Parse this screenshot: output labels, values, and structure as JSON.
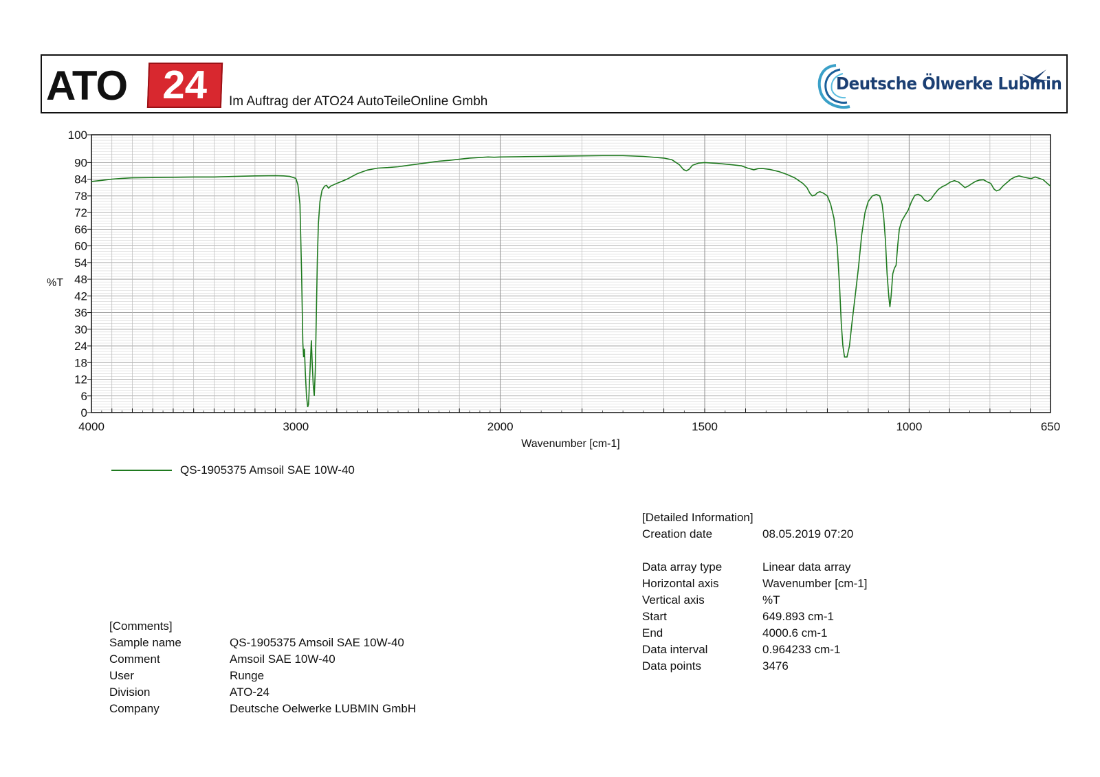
{
  "header": {
    "ato_logo_text": "ATO",
    "ato_logo_number": "24",
    "caption": "Im Auftrag der ATO24 AutoTeileOnline Gmbh",
    "dolw_logo_text": "Deutsche Ölwerke Lubmin"
  },
  "chart_data": {
    "type": "line",
    "title": "",
    "xlabel": "Wavenumber [cm-1]",
    "ylabel": "%T",
    "xlim": [
      4000,
      650
    ],
    "ylim": [
      0,
      100
    ],
    "x_ticks": [
      {
        "value": 4000,
        "label": "4000"
      },
      {
        "value": 3000,
        "label": "3000"
      },
      {
        "value": 2000,
        "label": "2000"
      },
      {
        "value": 1500,
        "label": "1500"
      },
      {
        "value": 1000,
        "label": "1000"
      },
      {
        "value": 650,
        "label": "650"
      }
    ],
    "y_ticks": [
      0,
      6,
      12,
      18,
      24,
      30,
      36,
      42,
      48,
      54,
      60,
      66,
      72,
      78,
      84,
      90,
      100
    ],
    "grid": true,
    "legend_position": "bottom-left",
    "series": [
      {
        "name": "QS-1905375 Amsoil SAE 10W-40",
        "color": "#1f7a1f",
        "points": [
          [
            4000,
            83.2
          ],
          [
            3950,
            83.6
          ],
          [
            3900,
            84.0
          ],
          [
            3850,
            84.3
          ],
          [
            3800,
            84.5
          ],
          [
            3700,
            84.6
          ],
          [
            3600,
            84.7
          ],
          [
            3500,
            84.8
          ],
          [
            3400,
            84.8
          ],
          [
            3300,
            85.0
          ],
          [
            3200,
            85.2
          ],
          [
            3100,
            85.3
          ],
          [
            3060,
            85.2
          ],
          [
            3030,
            85.0
          ],
          [
            3000,
            84.3
          ],
          [
            2990,
            82.0
          ],
          [
            2980,
            75.0
          ],
          [
            2972,
            50.0
          ],
          [
            2966,
            25.0
          ],
          [
            2962,
            20.0
          ],
          [
            2958,
            23.0
          ],
          [
            2954,
            15.0
          ],
          [
            2948,
            6.0
          ],
          [
            2942,
            2.0
          ],
          [
            2938,
            3.0
          ],
          [
            2934,
            10.0
          ],
          [
            2928,
            20.0
          ],
          [
            2924,
            26.0
          ],
          [
            2920,
            18.0
          ],
          [
            2915,
            10.0
          ],
          [
            2910,
            6.0
          ],
          [
            2905,
            15.0
          ],
          [
            2900,
            35.0
          ],
          [
            2895,
            55.0
          ],
          [
            2890,
            68.0
          ],
          [
            2882,
            76.0
          ],
          [
            2872,
            80.0
          ],
          [
            2860,
            81.5
          ],
          [
            2850,
            81.8
          ],
          [
            2840,
            80.8
          ],
          [
            2830,
            81.5
          ],
          [
            2800,
            82.5
          ],
          [
            2750,
            84.0
          ],
          [
            2700,
            86.0
          ],
          [
            2650,
            87.3
          ],
          [
            2600,
            88.0
          ],
          [
            2550,
            88.2
          ],
          [
            2500,
            88.5
          ],
          [
            2450,
            89.0
          ],
          [
            2400,
            89.5
          ],
          [
            2350,
            90.0
          ],
          [
            2300,
            90.5
          ],
          [
            2250,
            90.8
          ],
          [
            2200,
            91.2
          ],
          [
            2150,
            91.6
          ],
          [
            2100,
            91.8
          ],
          [
            2060,
            92.0
          ],
          [
            2030,
            91.9
          ],
          [
            2000,
            92.0
          ],
          [
            1950,
            92.1
          ],
          [
            1900,
            92.2
          ],
          [
            1850,
            92.3
          ],
          [
            1800,
            92.4
          ],
          [
            1750,
            92.5
          ],
          [
            1700,
            92.5
          ],
          [
            1650,
            92.2
          ],
          [
            1600,
            91.6
          ],
          [
            1580,
            91.0
          ],
          [
            1562,
            89.2
          ],
          [
            1552,
            87.5
          ],
          [
            1545,
            87.0
          ],
          [
            1538,
            87.6
          ],
          [
            1530,
            89.0
          ],
          [
            1515,
            89.8
          ],
          [
            1500,
            90.0
          ],
          [
            1470,
            89.7
          ],
          [
            1440,
            89.3
          ],
          [
            1410,
            88.8
          ],
          [
            1395,
            88.0
          ],
          [
            1380,
            87.4
          ],
          [
            1370,
            87.8
          ],
          [
            1360,
            87.9
          ],
          [
            1340,
            87.5
          ],
          [
            1320,
            86.8
          ],
          [
            1300,
            85.8
          ],
          [
            1280,
            84.5
          ],
          [
            1260,
            82.5
          ],
          [
            1250,
            81.0
          ],
          [
            1243,
            79.0
          ],
          [
            1237,
            78.0
          ],
          [
            1230,
            78.3
          ],
          [
            1224,
            79.2
          ],
          [
            1218,
            79.5
          ],
          [
            1210,
            79.0
          ],
          [
            1200,
            78.0
          ],
          [
            1192,
            75.0
          ],
          [
            1184,
            70.0
          ],
          [
            1176,
            60.0
          ],
          [
            1170,
            45.0
          ],
          [
            1166,
            32.0
          ],
          [
            1162,
            24.0
          ],
          [
            1158,
            20.0
          ],
          [
            1152,
            20.0
          ],
          [
            1146,
            24.0
          ],
          [
            1140,
            32.0
          ],
          [
            1132,
            42.0
          ],
          [
            1124,
            52.0
          ],
          [
            1116,
            64.0
          ],
          [
            1108,
            72.0
          ],
          [
            1100,
            76.0
          ],
          [
            1090,
            78.0
          ],
          [
            1080,
            78.5
          ],
          [
            1072,
            78.0
          ],
          [
            1066,
            75.0
          ],
          [
            1062,
            70.0
          ],
          [
            1058,
            62.0
          ],
          [
            1054,
            50.0
          ],
          [
            1050,
            42.0
          ],
          [
            1047,
            38.0
          ],
          [
            1044,
            42.0
          ],
          [
            1040,
            50.0
          ],
          [
            1036,
            52.0
          ],
          [
            1032,
            53.0
          ],
          [
            1028,
            60.0
          ],
          [
            1024,
            66.0
          ],
          [
            1018,
            69.0
          ],
          [
            1010,
            71.0
          ],
          [
            1002,
            73.0
          ],
          [
            994,
            76.0
          ],
          [
            986,
            78.2
          ],
          [
            978,
            78.6
          ],
          [
            970,
            78.0
          ],
          [
            962,
            76.5
          ],
          [
            954,
            76.0
          ],
          [
            946,
            76.8
          ],
          [
            938,
            78.5
          ],
          [
            928,
            80.3
          ],
          [
            918,
            81.3
          ],
          [
            908,
            82.0
          ],
          [
            898,
            83.0
          ],
          [
            888,
            83.5
          ],
          [
            878,
            83.0
          ],
          [
            870,
            82.0
          ],
          [
            862,
            81.0
          ],
          [
            854,
            81.5
          ],
          [
            846,
            82.3
          ],
          [
            836,
            83.2
          ],
          [
            826,
            83.7
          ],
          [
            816,
            83.8
          ],
          [
            806,
            83.0
          ],
          [
            798,
            82.5
          ],
          [
            790,
            80.5
          ],
          [
            784,
            79.8
          ],
          [
            776,
            80.2
          ],
          [
            768,
            81.5
          ],
          [
            758,
            82.8
          ],
          [
            748,
            84.0
          ],
          [
            738,
            84.8
          ],
          [
            728,
            85.2
          ],
          [
            718,
            84.8
          ],
          [
            708,
            84.5
          ],
          [
            698,
            84.2
          ],
          [
            688,
            84.8
          ],
          [
            678,
            84.3
          ],
          [
            668,
            83.8
          ],
          [
            658,
            82.5
          ],
          [
            650,
            81.5
          ]
        ]
      }
    ]
  },
  "legend": {
    "label": "QS-1905375 Amsoil SAE 10W-40"
  },
  "details": {
    "heading": "[Detailed Information]",
    "creation_date": {
      "key": "Creation date",
      "value": "08.05.2019 07:20"
    },
    "rows": [
      {
        "key": "Data array type",
        "value": "Linear data array"
      },
      {
        "key": "Horizontal axis",
        "value": "Wavenumber [cm-1]"
      },
      {
        "key": "Vertical axis",
        "value": "%T"
      },
      {
        "key": "Start",
        "value": "649.893 cm-1"
      },
      {
        "key": "End",
        "value": "4000.6 cm-1"
      },
      {
        "key": "Data interval",
        "value": "0.964233 cm-1"
      },
      {
        "key": "Data points",
        "value": "3476"
      }
    ]
  },
  "comments": {
    "heading": "[Comments]",
    "rows": [
      {
        "key": "Sample name",
        "value": "QS-1905375 Amsoil SAE 10W-40"
      },
      {
        "key": "Comment",
        "value": "Amsoil SAE 10W-40"
      },
      {
        "key": "User",
        "value": "Runge"
      },
      {
        "key": "Division",
        "value": "ATO-24"
      },
      {
        "key": "Company",
        "value": "Deutsche Oelwerke LUBMIN GmbH"
      }
    ]
  }
}
